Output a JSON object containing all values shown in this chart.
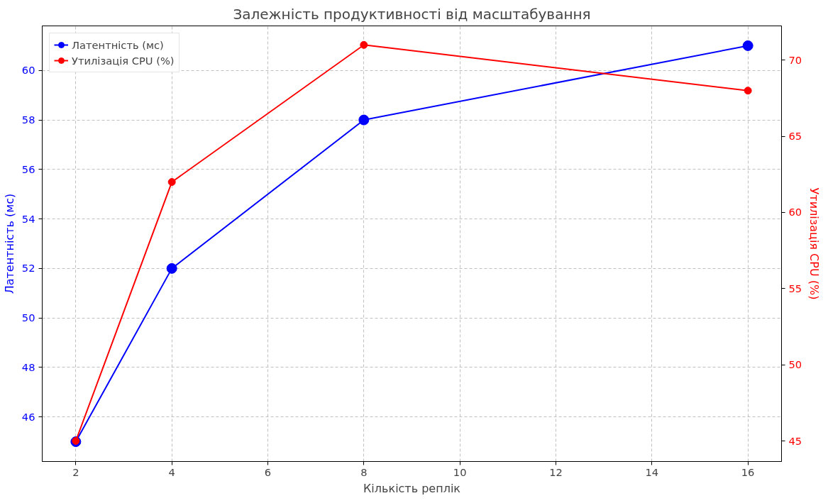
{
  "chart_data": {
    "type": "line",
    "title": "Залежність продуктивності від масштабування",
    "xlabel": "Кількість реплік",
    "ylabel": "Латентність (мс)",
    "y2label": "Утилізація CPU (%)",
    "x": [
      2,
      4,
      8,
      16
    ],
    "series": [
      {
        "name": "Латентність (мс)",
        "color": "#0000ff",
        "values": [
          45,
          52,
          58,
          61
        ]
      },
      {
        "name": "Утилізація CPU (%)",
        "color": "#ff0000",
        "values": [
          45,
          62,
          71,
          68
        ],
        "axis": "y2"
      }
    ],
    "xlim": [
      1.3,
      16.7
    ],
    "xticks": [
      2,
      4,
      6,
      8,
      10,
      12,
      14,
      16
    ],
    "ylim": [
      44.2,
      61.8
    ],
    "yticks": [
      46,
      48,
      50,
      52,
      54,
      56,
      58,
      60
    ],
    "y2lim": [
      43.65,
      72.25
    ],
    "y2ticks": [
      45,
      50,
      55,
      60,
      65,
      70
    ],
    "grid": true,
    "legend": "top left",
    "marker": "circle",
    "line_style": "solid"
  }
}
